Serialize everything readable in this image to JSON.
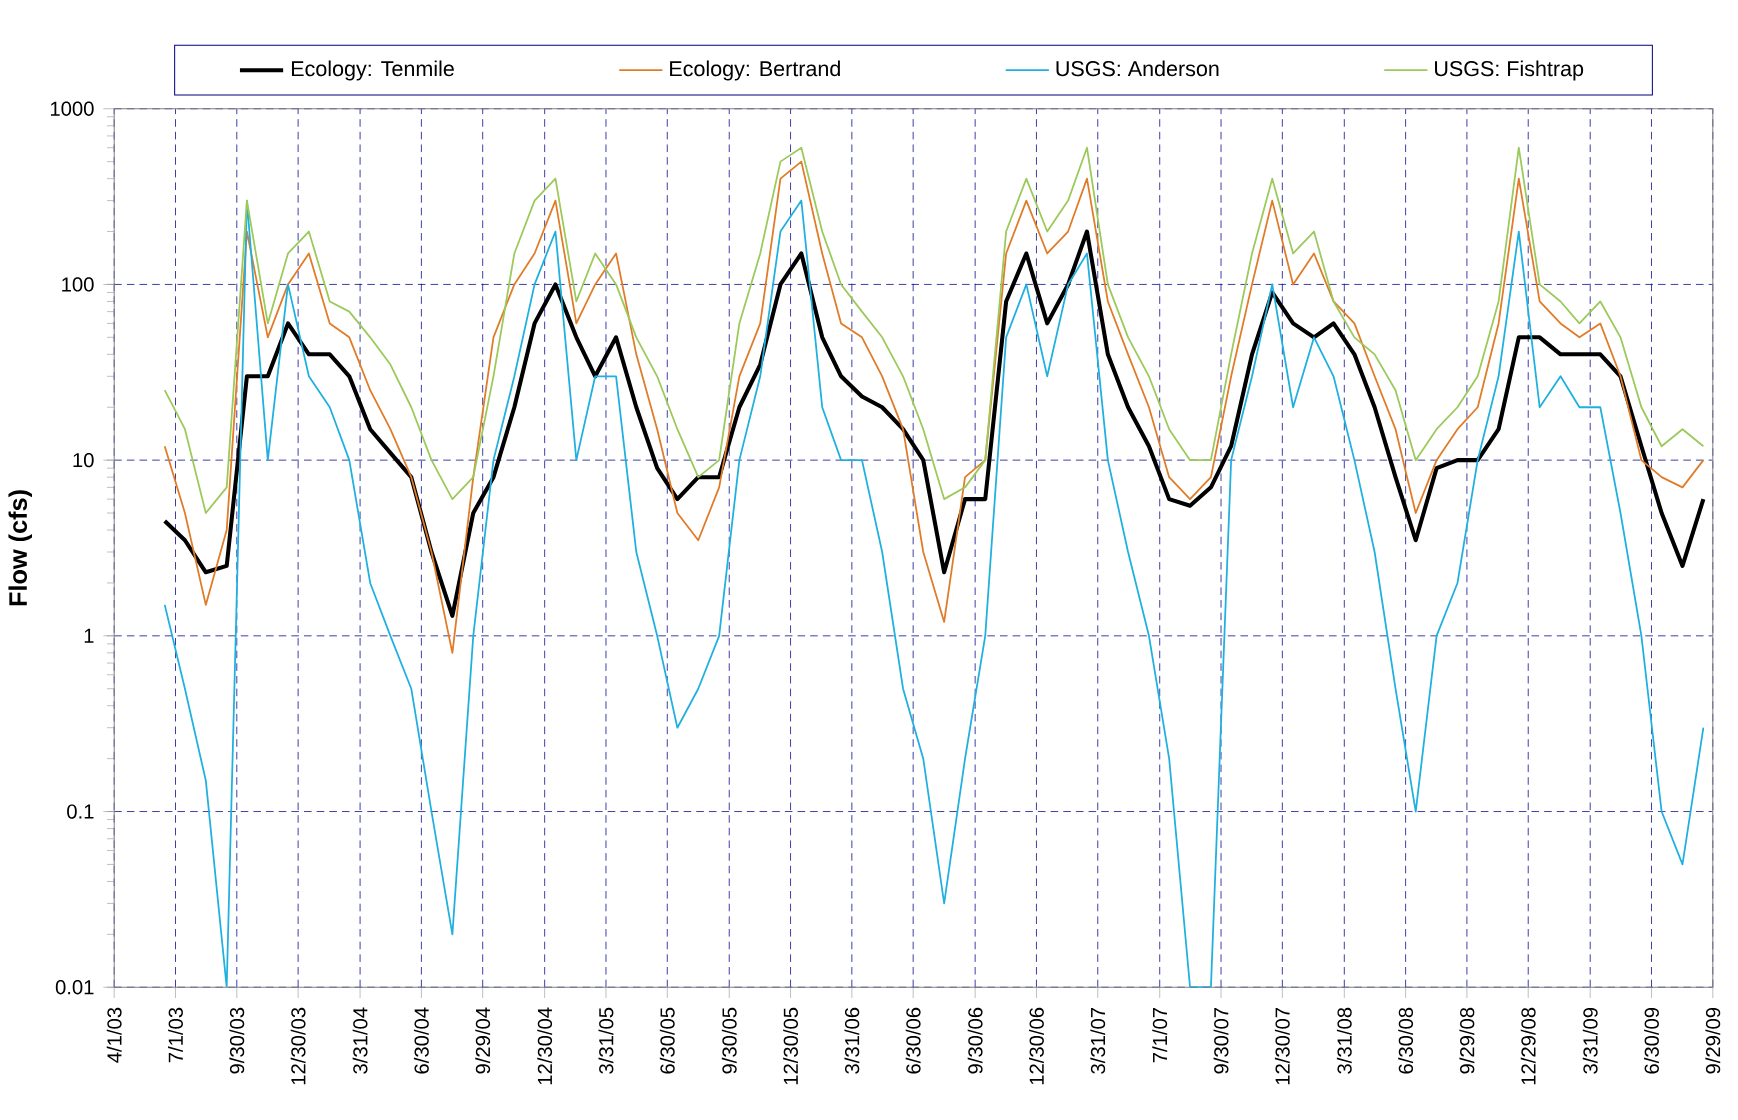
{
  "chart_data": {
    "type": "line",
    "ylabel": "Flow (cfs)",
    "log": true,
    "grid": true,
    "legend": "top",
    "x": [
      "2003-06-15",
      "2003-07-15",
      "2003-08-15",
      "2003-09-15",
      "2003-10-15",
      "2003-11-15",
      "2003-12-15",
      "2004-01-15",
      "2004-02-15",
      "2004-03-15",
      "2004-04-15",
      "2004-05-15",
      "2004-06-15",
      "2004-07-15",
      "2004-08-15",
      "2004-09-15",
      "2004-10-15",
      "2004-11-15",
      "2004-12-15",
      "2005-01-15",
      "2005-02-15",
      "2005-03-15",
      "2005-04-15",
      "2005-05-15",
      "2005-06-15",
      "2005-07-15",
      "2005-08-15",
      "2005-09-15",
      "2005-10-15",
      "2005-11-15",
      "2005-12-15",
      "2006-01-15",
      "2006-02-15",
      "2006-03-15",
      "2006-04-15",
      "2006-05-15",
      "2006-06-15",
      "2006-07-15",
      "2006-08-15",
      "2006-09-15",
      "2006-10-15",
      "2006-11-15",
      "2006-12-15",
      "2007-01-15",
      "2007-02-15",
      "2007-03-15",
      "2007-04-15",
      "2007-05-15",
      "2007-06-15",
      "2007-07-15",
      "2007-08-15",
      "2007-09-15",
      "2007-10-15",
      "2007-11-15",
      "2007-12-15",
      "2008-01-15",
      "2008-02-15",
      "2008-03-15",
      "2008-04-15",
      "2008-05-15",
      "2008-06-15",
      "2008-07-15",
      "2008-08-15",
      "2008-09-15",
      "2008-10-15",
      "2008-11-15",
      "2008-12-15",
      "2009-01-15",
      "2009-02-15",
      "2009-03-15",
      "2009-04-15",
      "2009-05-15",
      "2009-06-15",
      "2009-07-15",
      "2009-08-15",
      "2009-09-15"
    ],
    "xlim": [
      "2003-04-01",
      "2009-09-29"
    ],
    "xticks": [
      {
        "value": "2003-04-01",
        "label": "4/1/03"
      },
      {
        "value": "2003-07-01",
        "label": "7/1/03"
      },
      {
        "value": "2003-09-30",
        "label": "9/30/03"
      },
      {
        "value": "2003-12-30",
        "label": "12/30/03"
      },
      {
        "value": "2004-03-31",
        "label": "3/31/04"
      },
      {
        "value": "2004-06-30",
        "label": "6/30/04"
      },
      {
        "value": "2004-09-29",
        "label": "9/29/04"
      },
      {
        "value": "2004-12-30",
        "label": "12/30/04"
      },
      {
        "value": "2005-03-31",
        "label": "3/31/05"
      },
      {
        "value": "2005-06-30",
        "label": "6/30/05"
      },
      {
        "value": "2005-09-30",
        "label": "9/30/05"
      },
      {
        "value": "2005-12-30",
        "label": "12/30/05"
      },
      {
        "value": "2006-03-31",
        "label": "3/31/06"
      },
      {
        "value": "2006-06-30",
        "label": "6/30/06"
      },
      {
        "value": "2006-09-30",
        "label": "9/30/06"
      },
      {
        "value": "2006-12-30",
        "label": "12/30/06"
      },
      {
        "value": "2007-03-31",
        "label": "3/31/07"
      },
      {
        "value": "2007-07-01",
        "label": "7/1/07"
      },
      {
        "value": "2007-09-30",
        "label": "9/30/07"
      },
      {
        "value": "2007-12-30",
        "label": "12/30/07"
      },
      {
        "value": "2008-03-31",
        "label": "3/31/08"
      },
      {
        "value": "2008-06-30",
        "label": "6/30/08"
      },
      {
        "value": "2008-09-29",
        "label": "9/29/08"
      },
      {
        "value": "2008-12-29",
        "label": "12/29/08"
      },
      {
        "value": "2009-03-31",
        "label": "3/31/09"
      },
      {
        "value": "2009-06-30",
        "label": "6/30/09"
      },
      {
        "value": "2009-09-29",
        "label": "9/29/09"
      }
    ],
    "ylim": [
      0.01,
      1000
    ],
    "yticks": [
      0.01,
      0.1,
      1,
      10,
      100,
      1000
    ],
    "series": [
      {
        "name": "Ecology:  Tenmile",
        "color": "#000000",
        "values": [
          4.5,
          3.5,
          2.3,
          2.5,
          30,
          30,
          60,
          40,
          40,
          30,
          15,
          11,
          8,
          3,
          1.3,
          5,
          8,
          20,
          60,
          100,
          50,
          30,
          50,
          20,
          9,
          6,
          8,
          8,
          20,
          35,
          100,
          150,
          50,
          30,
          23,
          20,
          15,
          10,
          2.3,
          6,
          6,
          80,
          150,
          60,
          100,
          200,
          40,
          20,
          12,
          6,
          5.5,
          7,
          12,
          40,
          90,
          60,
          50,
          60,
          40,
          20,
          8,
          3.5,
          9,
          10,
          10,
          15,
          50,
          50,
          40,
          40,
          40,
          30,
          12,
          5,
          2.5,
          6
        ]
      },
      {
        "name": "Ecology:  Bertrand",
        "color": "#e07b28",
        "values": [
          12,
          5,
          1.5,
          4,
          200,
          50,
          100,
          150,
          60,
          50,
          25,
          15,
          8,
          3,
          0.8,
          8,
          50,
          100,
          150,
          300,
          60,
          100,
          150,
          40,
          15,
          5,
          3.5,
          7,
          30,
          60,
          400,
          500,
          150,
          60,
          50,
          30,
          15,
          3,
          1.2,
          8,
          10,
          150,
          300,
          150,
          200,
          400,
          80,
          40,
          20,
          8,
          6,
          8,
          30,
          100,
          300,
          100,
          150,
          80,
          60,
          30,
          15,
          5,
          10,
          15,
          20,
          60,
          400,
          80,
          60,
          50,
          60,
          30,
          10,
          8,
          7,
          10
        ]
      },
      {
        "name": "USGS:  Anderson",
        "color": "#1fb0e0",
        "values": [
          1.5,
          0.5,
          0.15,
          0.01,
          300,
          10,
          100,
          30,
          20,
          10,
          2,
          1,
          0.5,
          0.1,
          0.02,
          1,
          10,
          30,
          100,
          200,
          10,
          30,
          30,
          3,
          1,
          0.3,
          0.5,
          1,
          10,
          30,
          200,
          300,
          20,
          10,
          10,
          3,
          0.5,
          0.2,
          0.03,
          0.2,
          1,
          50,
          100,
          30,
          100,
          150,
          10,
          3,
          1,
          0.2,
          0.01,
          0.01,
          10,
          30,
          100,
          20,
          50,
          30,
          10,
          3,
          0.5,
          0.1,
          1,
          2,
          10,
          30,
          200,
          20,
          30,
          20,
          20,
          5,
          1,
          0.1,
          0.05,
          0.3
        ]
      },
      {
        "name": "USGS:  Fishtrap",
        "color": "#9bc95a",
        "values": [
          25,
          15,
          5,
          7,
          300,
          60,
          150,
          200,
          80,
          70,
          50,
          35,
          20,
          10,
          6,
          8,
          30,
          150,
          300,
          400,
          80,
          150,
          100,
          50,
          30,
          15,
          8,
          10,
          60,
          150,
          500,
          600,
          200,
          100,
          70,
          50,
          30,
          15,
          6,
          7,
          10,
          200,
          400,
          200,
          300,
          600,
          100,
          50,
          30,
          15,
          10,
          10,
          40,
          150,
          400,
          150,
          200,
          80,
          50,
          40,
          25,
          10,
          15,
          20,
          30,
          80,
          600,
          100,
          80,
          60,
          80,
          50,
          20,
          12,
          15,
          12
        ]
      }
    ]
  }
}
